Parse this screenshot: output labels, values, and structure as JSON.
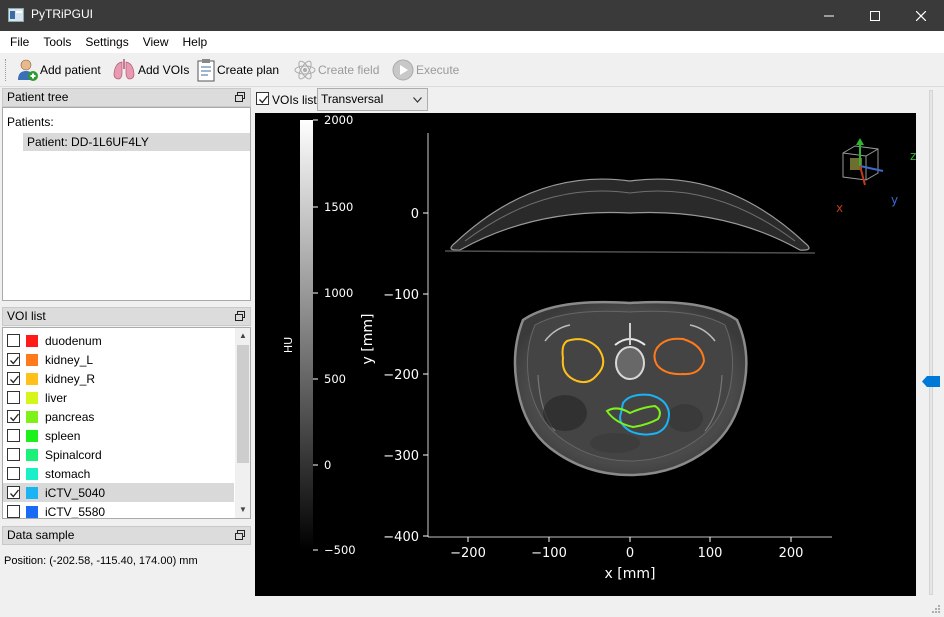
{
  "window": {
    "title": "PyTRiPGUI"
  },
  "menu": [
    "File",
    "Tools",
    "Settings",
    "View",
    "Help"
  ],
  "toolbar": {
    "add_patient": "Add patient",
    "add_vois": "Add VOIs",
    "create_plan": "Create plan",
    "create_field": "Create field",
    "execute": "Execute"
  },
  "patient_tree": {
    "title": "Patient tree",
    "label": "Patients:",
    "patient": "Patient: DD-1L6UF4LY"
  },
  "voi_list": {
    "title": "VOI list",
    "items": [
      {
        "label": "duodenum",
        "checked": false,
        "color": "#ff1a1a"
      },
      {
        "label": "kidney_L",
        "checked": true,
        "color": "#ff7a1a"
      },
      {
        "label": "kidney_R",
        "checked": true,
        "color": "#ffc01a"
      },
      {
        "label": "liver",
        "checked": false,
        "color": "#d6f51a"
      },
      {
        "label": "pancreas",
        "checked": true,
        "color": "#7ef01a"
      },
      {
        "label": "spleen",
        "checked": false,
        "color": "#1af01a"
      },
      {
        "label": "Spinalcord",
        "checked": false,
        "color": "#1af07a"
      },
      {
        "label": "stomach",
        "checked": false,
        "color": "#1af0c8"
      },
      {
        "label": "iCTV_5040",
        "checked": true,
        "color": "#1ab4f5",
        "selected": true
      },
      {
        "label": "iCTV_5580",
        "checked": false,
        "color": "#1a6af5"
      }
    ]
  },
  "data_sample": {
    "title": "Data sample",
    "position": "Position: (-202.58, -115.40, 174.00) mm"
  },
  "view": {
    "vois_list_label": "VOIs list",
    "vois_list_checked": true,
    "orientation": "Transversal"
  },
  "plot": {
    "colorbar": {
      "label": "HU",
      "ticks": [
        "2000",
        "1500",
        "1000",
        "500",
        "0",
        "−500"
      ]
    },
    "xlabel": "x [mm]",
    "ylabel": "y [mm]",
    "xticks": [
      "−200",
      "−100",
      "0",
      "100",
      "200"
    ],
    "yticks": [
      "0",
      "−100",
      "−200",
      "−300",
      "−400"
    ],
    "axes_widget": {
      "x": "x",
      "y": "y",
      "z": "z"
    }
  }
}
